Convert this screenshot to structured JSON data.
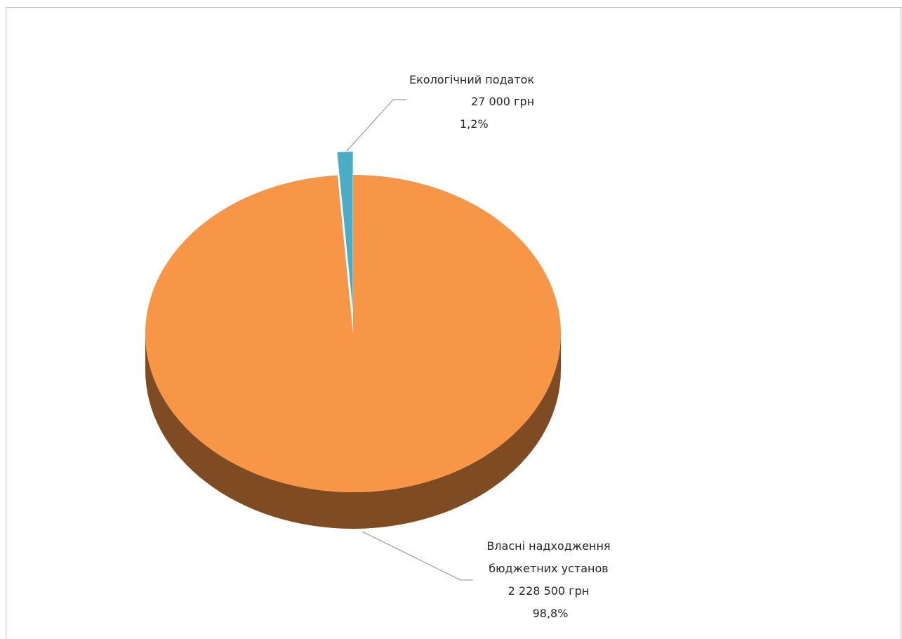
{
  "chart_data": {
    "type": "pie",
    "style": "3d",
    "slices": [
      {
        "name": "Власні надходження бюджетних установ",
        "label_lines": [
          "Власні надходження",
          "бюджетних установ",
          "2 228 500 грн",
          "98,8%"
        ],
        "value": 2228500,
        "percent": 98.8,
        "color": "#f79646",
        "side_color": "#7e4b22"
      },
      {
        "name": "Екологічний податок",
        "label_lines": [
          "Екологічний податок",
          "27 000 грн",
          "1,2%"
        ],
        "value": 27000,
        "percent": 1.2,
        "color": "#4bacc6",
        "side_color": "#215968",
        "exploded": true
      }
    ],
    "legend": "none",
    "leader_lines": true
  }
}
